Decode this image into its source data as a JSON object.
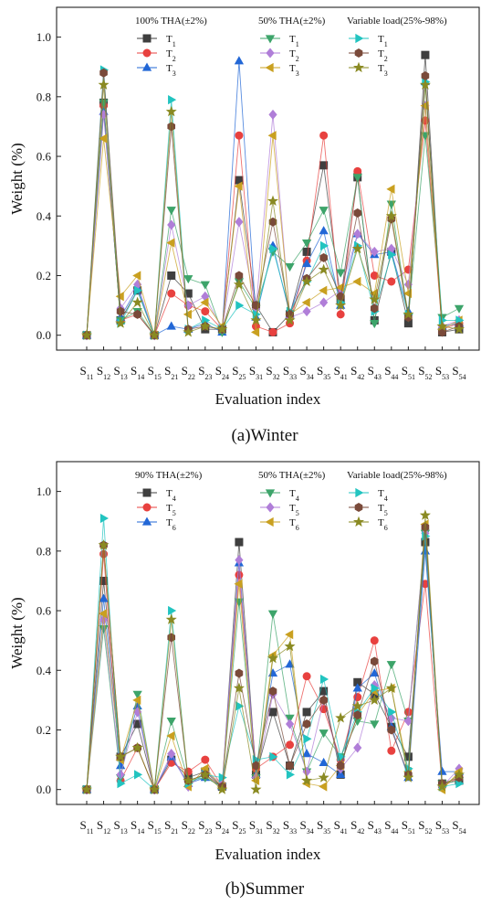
{
  "chart_data": [
    {
      "type": "line",
      "caption": "(a)Winter",
      "xlabel": "Evaluation index",
      "ylabel": "Weight (%)",
      "ylim": [
        -0.05,
        1.1
      ],
      "yticks": [
        "0.0",
        "0.2",
        "0.4",
        "0.6",
        "0.8",
        "1.0"
      ],
      "categories": [
        "S11",
        "S12",
        "S13",
        "S14",
        "S15",
        "S21",
        "S22",
        "S23",
        "S24",
        "S25",
        "S31",
        "S32",
        "S33",
        "S34",
        "S35",
        "S41",
        "S42",
        "S43",
        "S44",
        "S51",
        "S52",
        "S53",
        "S54"
      ],
      "legend_groups": [
        "100% THA(±2%)",
        "50% THA(±2%)",
        "Variable load(25%-98%)"
      ],
      "series": [
        {
          "name": "T1",
          "group": 0,
          "marker": "square",
          "color": "#3f3f3f",
          "values": [
            0.0,
            0.78,
            0.05,
            0.15,
            0.0,
            0.2,
            0.14,
            0.02,
            0.02,
            0.52,
            0.1,
            0.01,
            0.07,
            0.28,
            0.57,
            0.12,
            0.53,
            0.05,
            0.28,
            0.04,
            0.94,
            0.01,
            0.02
          ]
        },
        {
          "name": "T2",
          "group": 0,
          "marker": "circle",
          "color": "#e8413f",
          "values": [
            0.0,
            0.77,
            0.05,
            0.07,
            0.0,
            0.14,
            0.1,
            0.08,
            0.02,
            0.67,
            0.03,
            0.01,
            0.04,
            0.25,
            0.67,
            0.07,
            0.55,
            0.2,
            0.18,
            0.22,
            0.72,
            0.02,
            0.04
          ]
        },
        {
          "name": "T3",
          "group": 0,
          "marker": "triangle-up",
          "color": "#2267d6",
          "values": [
            0.0,
            0.75,
            0.06,
            0.16,
            0.0,
            0.03,
            0.02,
            0.04,
            0.01,
            0.92,
            0.06,
            0.3,
            0.07,
            0.24,
            0.35,
            0.1,
            0.34,
            0.27,
            0.28,
            0.08,
            0.85,
            0.03,
            0.04
          ]
        },
        {
          "name": "T1",
          "group": 1,
          "marker": "triangle-down",
          "color": "#3da46a",
          "values": [
            0.0,
            0.78,
            0.05,
            0.08,
            0.0,
            0.42,
            0.19,
            0.17,
            0.01,
            0.18,
            0.09,
            0.28,
            0.23,
            0.31,
            0.42,
            0.21,
            0.53,
            0.04,
            0.44,
            0.06,
            0.67,
            0.06,
            0.09
          ]
        },
        {
          "name": "T2",
          "group": 1,
          "marker": "diamond",
          "color": "#b07ed8",
          "values": [
            0.0,
            0.74,
            0.09,
            0.17,
            0.0,
            0.37,
            0.1,
            0.13,
            0.02,
            0.38,
            0.09,
            0.74,
            0.06,
            0.08,
            0.11,
            0.15,
            0.34,
            0.28,
            0.29,
            0.17,
            0.77,
            0.03,
            0.05
          ]
        },
        {
          "name": "T3",
          "group": 1,
          "marker": "triangle-left",
          "color": "#c9a020",
          "values": [
            0.0,
            0.66,
            0.13,
            0.2,
            0.0,
            0.31,
            0.07,
            0.11,
            0.03,
            0.5,
            0.01,
            0.67,
            0.07,
            0.11,
            0.15,
            0.16,
            0.18,
            0.14,
            0.49,
            0.14,
            0.77,
            0.02,
            0.05
          ]
        },
        {
          "name": "T1",
          "group": 2,
          "marker": "triangle-right",
          "color": "#22c4c0",
          "values": [
            0.0,
            0.89,
            0.04,
            0.15,
            0.0,
            0.79,
            0.02,
            0.05,
            0.02,
            0.1,
            0.07,
            0.29,
            0.08,
            0.18,
            0.3,
            0.11,
            0.3,
            0.08,
            0.27,
            0.07,
            0.85,
            0.05,
            0.05
          ]
        },
        {
          "name": "T2",
          "group": 2,
          "marker": "hexagon",
          "color": "#7a4a3a",
          "values": [
            0.0,
            0.88,
            0.08,
            0.07,
            0.0,
            0.7,
            0.02,
            0.03,
            0.02,
            0.2,
            0.1,
            0.38,
            0.07,
            0.19,
            0.26,
            0.13,
            0.41,
            0.09,
            0.39,
            0.06,
            0.87,
            0.01,
            0.03
          ]
        },
        {
          "name": "T3",
          "group": 2,
          "marker": "star",
          "color": "#8a8a22",
          "values": [
            0.0,
            0.84,
            0.04,
            0.11,
            0.0,
            0.75,
            0.01,
            0.03,
            0.02,
            0.17,
            0.05,
            0.45,
            0.05,
            0.18,
            0.22,
            0.1,
            0.29,
            0.12,
            0.4,
            0.07,
            0.84,
            0.03,
            0.02
          ]
        }
      ]
    },
    {
      "type": "line",
      "caption": "(b)Summer",
      "xlabel": "Evaluation index",
      "ylabel": "Weight (%)",
      "ylim": [
        -0.05,
        1.1
      ],
      "yticks": [
        "0.0",
        "0.2",
        "0.4",
        "0.6",
        "0.8",
        "1.0"
      ],
      "categories": [
        "S11",
        "S12",
        "S13",
        "S14",
        "S15",
        "S21",
        "S22",
        "S23",
        "S24",
        "S25",
        "S31",
        "S32",
        "S33",
        "S34",
        "S35",
        "S41",
        "S42",
        "S43",
        "S44",
        "S51",
        "S52",
        "S53",
        "S54"
      ],
      "legend_groups": [
        "90% THA(±2%)",
        "50% THA(±2%)",
        "Variable load(25%-98%)"
      ],
      "series": [
        {
          "name": "T4",
          "group": 0,
          "marker": "square",
          "color": "#3f3f3f",
          "values": [
            0.0,
            0.7,
            0.11,
            0.22,
            0.0,
            0.1,
            0.04,
            0.06,
            0.01,
            0.83,
            0.05,
            0.26,
            0.08,
            0.26,
            0.33,
            0.05,
            0.36,
            0.32,
            0.21,
            0.11,
            0.83,
            0.02,
            0.03
          ]
        },
        {
          "name": "T5",
          "group": 0,
          "marker": "circle",
          "color": "#e8413f",
          "values": [
            0.0,
            0.79,
            0.03,
            0.14,
            0.0,
            0.09,
            0.06,
            0.1,
            0.01,
            0.72,
            0.07,
            0.11,
            0.15,
            0.38,
            0.27,
            0.1,
            0.31,
            0.5,
            0.13,
            0.26,
            0.69,
            0.01,
            0.04
          ]
        },
        {
          "name": "T6",
          "group": 0,
          "marker": "triangle-up",
          "color": "#2267d6",
          "values": [
            0.0,
            0.64,
            0.08,
            0.28,
            0.0,
            0.11,
            0.02,
            0.04,
            0.01,
            0.76,
            0.05,
            0.39,
            0.42,
            0.12,
            0.09,
            0.05,
            0.34,
            0.39,
            0.21,
            0.04,
            0.8,
            0.06,
            0.06
          ]
        },
        {
          "name": "T4",
          "group": 1,
          "marker": "triangle-down",
          "color": "#3da46a",
          "values": [
            0.0,
            0.54,
            0.04,
            0.32,
            0.0,
            0.23,
            0.03,
            0.04,
            0.01,
            0.63,
            0.04,
            0.59,
            0.24,
            0.06,
            0.19,
            0.11,
            0.23,
            0.22,
            0.42,
            0.23,
            0.86,
            0.02,
            0.03
          ]
        },
        {
          "name": "T5",
          "group": 1,
          "marker": "diamond",
          "color": "#b07ed8",
          "values": [
            0.0,
            0.57,
            0.05,
            0.26,
            0.0,
            0.12,
            0.01,
            0.06,
            0.02,
            0.77,
            0.04,
            0.32,
            0.22,
            0.06,
            0.3,
            0.07,
            0.14,
            0.35,
            0.24,
            0.23,
            0.86,
            0.01,
            0.07
          ]
        },
        {
          "name": "T6",
          "group": 1,
          "marker": "triangle-left",
          "color": "#c9a020",
          "values": [
            0.0,
            0.59,
            0.1,
            0.3,
            0.0,
            0.18,
            0.01,
            0.07,
            0.01,
            0.69,
            0.03,
            0.45,
            0.52,
            0.02,
            0.01,
            0.08,
            0.25,
            0.33,
            0.34,
            0.06,
            0.89,
            0.0,
            0.06
          ]
        },
        {
          "name": "T4",
          "group": 2,
          "marker": "triangle-right",
          "color": "#22c4c0",
          "values": [
            0.0,
            0.91,
            0.02,
            0.05,
            0.0,
            0.6,
            0.02,
            0.05,
            0.04,
            0.28,
            0.1,
            0.11,
            0.05,
            0.17,
            0.37,
            0.11,
            0.26,
            0.34,
            0.26,
            0.07,
            0.85,
            0.01,
            0.02
          ]
        },
        {
          "name": "T5",
          "group": 2,
          "marker": "hexagon",
          "color": "#7a4a3a",
          "values": [
            0.0,
            0.82,
            0.11,
            0.14,
            0.0,
            0.51,
            0.03,
            0.05,
            0.01,
            0.39,
            0.08,
            0.33,
            0.08,
            0.22,
            0.3,
            0.08,
            0.25,
            0.43,
            0.2,
            0.05,
            0.88,
            0.02,
            0.04
          ]
        },
        {
          "name": "T6",
          "group": 2,
          "marker": "star",
          "color": "#8a8a22",
          "values": [
            0.0,
            0.82,
            0.11,
            0.14,
            0.0,
            0.57,
            0.03,
            0.05,
            0.0,
            0.34,
            0.0,
            0.44,
            0.48,
            0.03,
            0.04,
            0.24,
            0.28,
            0.3,
            0.34,
            0.04,
            0.92,
            0.01,
            0.05
          ]
        }
      ]
    }
  ]
}
